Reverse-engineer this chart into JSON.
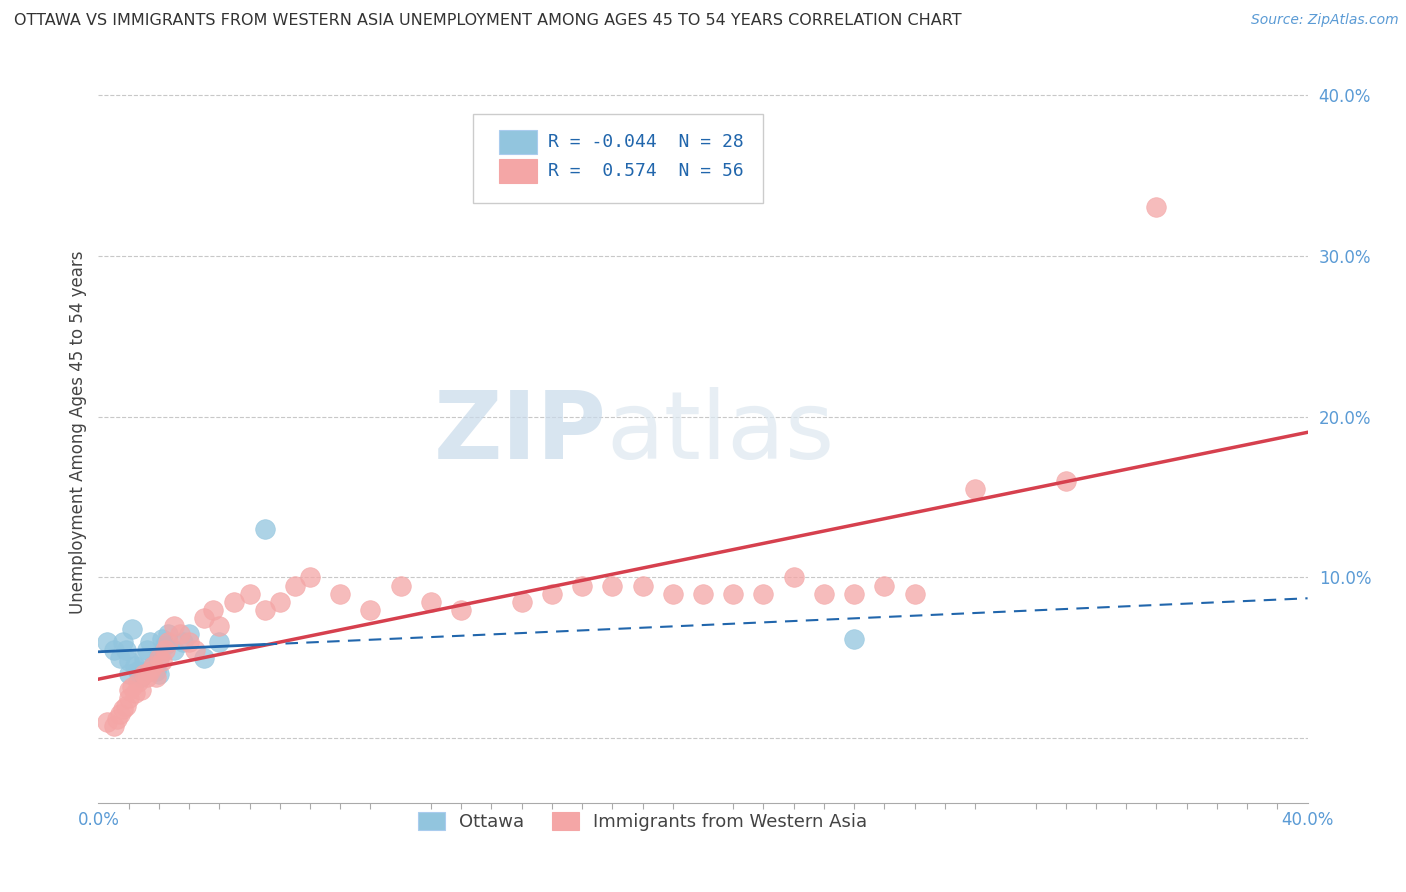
{
  "title": "OTTAWA VS IMMIGRANTS FROM WESTERN ASIA UNEMPLOYMENT AMONG AGES 45 TO 54 YEARS CORRELATION CHART",
  "source": "Source: ZipAtlas.com",
  "ylabel": "Unemployment Among Ages 45 to 54 years",
  "xlim": [
    0.0,
    0.4
  ],
  "ylim": [
    -0.04,
    0.42
  ],
  "xticks_major": [
    0.0,
    0.1,
    0.2,
    0.3,
    0.4
  ],
  "xtick_major_labels": [
    "0.0%",
    "",
    "",
    "",
    "40.0%"
  ],
  "xticks_minor": [
    0.05,
    0.1,
    0.15,
    0.2,
    0.25,
    0.3,
    0.35
  ],
  "ytick_right_vals": [
    0.0,
    0.1,
    0.2,
    0.3,
    0.4
  ],
  "ytick_right_labels": [
    "",
    "10.0%",
    "20.0%",
    "30.0%",
    "40.0%"
  ],
  "watermark_zip": "ZIP",
  "watermark_atlas": "atlas",
  "legend_ottawa_R": "-0.044",
  "legend_ottawa_N": "28",
  "legend_immigrants_R": "0.574",
  "legend_immigrants_N": "56",
  "ottawa_color": "#92c5de",
  "immigrants_color": "#f4a6a6",
  "ottawa_line_color": "#2166ac",
  "immigrants_line_color": "#d6404e",
  "background_color": "#ffffff",
  "grid_color": "#c8c8c8",
  "legend_labels": [
    "Ottawa",
    "Immigrants from Western Asia"
  ],
  "ottawa_scatter_x": [
    0.003,
    0.005,
    0.007,
    0.008,
    0.009,
    0.01,
    0.01,
    0.011,
    0.012,
    0.013,
    0.014,
    0.015,
    0.016,
    0.017,
    0.018,
    0.019,
    0.02,
    0.02,
    0.021,
    0.022,
    0.023,
    0.025,
    0.028,
    0.03,
    0.035,
    0.04,
    0.055,
    0.25
  ],
  "ottawa_scatter_y": [
    0.06,
    0.055,
    0.05,
    0.06,
    0.055,
    0.048,
    0.04,
    0.068,
    0.045,
    0.042,
    0.038,
    0.05,
    0.055,
    0.06,
    0.045,
    0.042,
    0.04,
    0.05,
    0.062,
    0.058,
    0.065,
    0.055,
    0.06,
    0.065,
    0.05,
    0.06,
    0.13,
    0.062
  ],
  "immigrants_scatter_x": [
    0.003,
    0.005,
    0.006,
    0.007,
    0.008,
    0.009,
    0.01,
    0.01,
    0.011,
    0.012,
    0.013,
    0.014,
    0.015,
    0.016,
    0.017,
    0.018,
    0.019,
    0.02,
    0.021,
    0.022,
    0.023,
    0.025,
    0.027,
    0.03,
    0.032,
    0.035,
    0.038,
    0.04,
    0.045,
    0.05,
    0.055,
    0.06,
    0.065,
    0.07,
    0.08,
    0.09,
    0.1,
    0.11,
    0.12,
    0.14,
    0.15,
    0.16,
    0.17,
    0.18,
    0.19,
    0.2,
    0.21,
    0.22,
    0.23,
    0.24,
    0.25,
    0.26,
    0.27,
    0.29,
    0.32,
    0.35
  ],
  "immigrants_scatter_y": [
    0.01,
    0.008,
    0.012,
    0.015,
    0.018,
    0.02,
    0.025,
    0.03,
    0.032,
    0.028,
    0.035,
    0.03,
    0.04,
    0.038,
    0.042,
    0.045,
    0.038,
    0.05,
    0.048,
    0.055,
    0.06,
    0.07,
    0.065,
    0.06,
    0.055,
    0.075,
    0.08,
    0.07,
    0.085,
    0.09,
    0.08,
    0.085,
    0.095,
    0.1,
    0.09,
    0.08,
    0.095,
    0.085,
    0.08,
    0.085,
    0.09,
    0.095,
    0.095,
    0.095,
    0.09,
    0.09,
    0.09,
    0.09,
    0.1,
    0.09,
    0.09,
    0.095,
    0.09,
    0.155,
    0.16,
    0.33
  ]
}
